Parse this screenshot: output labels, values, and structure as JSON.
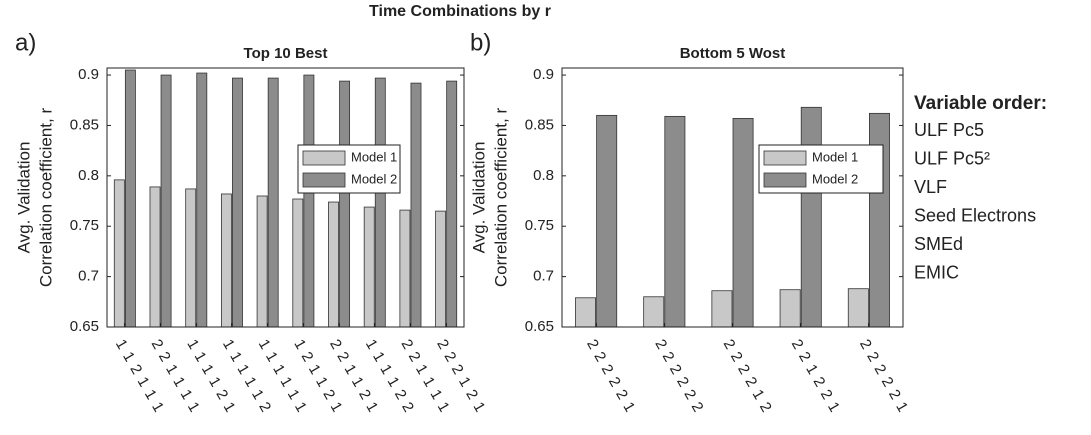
{
  "title": "Time Combinations by r",
  "variable_order": {
    "heading": "Variable order:",
    "items": [
      "ULF Pc5",
      "ULF Pc5²",
      "VLF",
      "Seed Electrons",
      "SMEd",
      "EMIC"
    ]
  },
  "chart_data": [
    {
      "type": "bar",
      "panel_label": "a)",
      "title": "Top 10 Best",
      "ylabel": [
        "Avg. Validation",
        "Correlation coefficient, r"
      ],
      "categories": [
        "1 1 2 1 1 1",
        "2 2 1 1 1 1",
        "1 1 1 1 2 1",
        "1 1 1 1 1 2",
        "1 1 1 1 1 1",
        "1 2 1 1 2 1",
        "2 2 1 1 2 1",
        "1 1 1 1 2 2",
        "2 2 1 1 1 1",
        "2 2 2 1 2 1"
      ],
      "series": [
        {
          "name": "Model 1",
          "color": "#c8c8c8",
          "values": [
            0.796,
            0.789,
            0.787,
            0.782,
            0.78,
            0.777,
            0.774,
            0.769,
            0.766,
            0.765
          ]
        },
        {
          "name": "Model 2",
          "color": "#8c8c8c",
          "values": [
            0.905,
            0.9,
            0.902,
            0.897,
            0.897,
            0.9,
            0.894,
            0.897,
            0.892,
            0.894
          ]
        }
      ],
      "ylim": [
        0.65,
        0.907
      ],
      "yticks": [
        0.65,
        0.7,
        0.75,
        0.8,
        0.85,
        0.9
      ],
      "legend": "right"
    },
    {
      "type": "bar",
      "panel_label": "b)",
      "title": "Bottom 5 Wost",
      "ylabel": [
        "Avg. Validation",
        "Correlation coefficient, r"
      ],
      "categories": [
        "2 2 2 2 2 1",
        "2 2 2 2 2 2",
        "2 2 2 2 1 2",
        "2 2 1 2 2 1",
        "2 2 2 2 2 1"
      ],
      "series": [
        {
          "name": "Model 1",
          "color": "#c8c8c8",
          "values": [
            0.679,
            0.68,
            0.686,
            0.687,
            0.688
          ]
        },
        {
          "name": "Model 2",
          "color": "#8c8c8c",
          "values": [
            0.86,
            0.859,
            0.857,
            0.868,
            0.862
          ]
        }
      ],
      "ylim": [
        0.65,
        0.907
      ],
      "yticks": [
        0.65,
        0.7,
        0.75,
        0.8,
        0.85,
        0.9
      ],
      "legend": "right"
    }
  ]
}
